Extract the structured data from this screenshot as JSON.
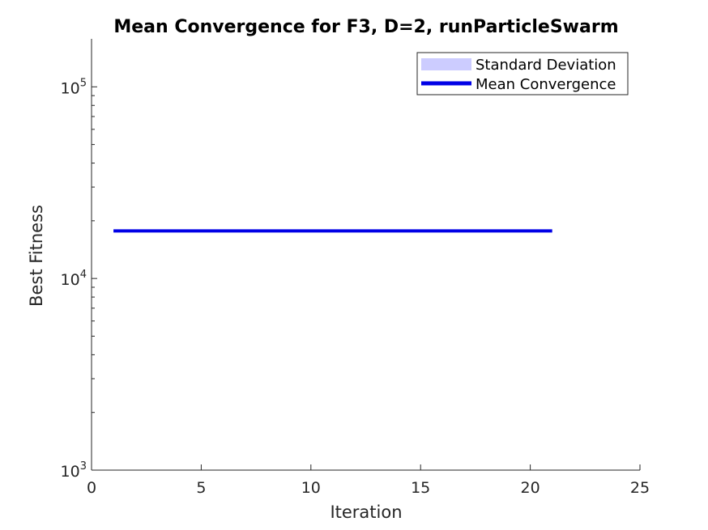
{
  "chart_data": {
    "type": "line",
    "title": "Mean Convergence for F3, D=2, runParticleSwarm",
    "xlabel": "Iteration",
    "ylabel": "Best Fitness",
    "xlim": [
      0,
      25
    ],
    "ylim": [
      1000,
      178000
    ],
    "yscale": "log",
    "grid": false,
    "legend_position": "top-right",
    "x_ticks": [
      "0",
      "5",
      "10",
      "15",
      "20",
      "25"
    ],
    "y_ticks": [
      {
        "base": "10",
        "exp": "3",
        "value": 1000
      },
      {
        "base": "10",
        "exp": "4",
        "value": 10000
      },
      {
        "base": "10",
        "exp": "5",
        "value": 100000
      }
    ],
    "legend": [
      {
        "label": "Standard Deviation",
        "color": "#ccccff",
        "kind": "patch"
      },
      {
        "label": "Mean Convergence",
        "color": "#0000e6",
        "kind": "line"
      }
    ],
    "series": [
      {
        "name": "Mean Convergence",
        "color": "#0000e6",
        "x": [
          1,
          2,
          3,
          4,
          5,
          6,
          7,
          8,
          9,
          10,
          11,
          12,
          13,
          14,
          15,
          16,
          17,
          18,
          19,
          20,
          21
        ],
        "y": [
          17700,
          17700,
          17700,
          17700,
          17700,
          17700,
          17700,
          17700,
          17700,
          17700,
          17700,
          17700,
          17700,
          17700,
          17700,
          17700,
          17700,
          17700,
          17700,
          17700,
          17700
        ],
        "std_lower": [
          17700,
          17700,
          17700,
          17700,
          17700,
          17700,
          17700,
          17700,
          17700,
          17700,
          17700,
          17700,
          17700,
          17700,
          17700,
          17700,
          17700,
          17700,
          17700,
          17700,
          17700
        ],
        "std_upper": [
          17700,
          17700,
          17700,
          17700,
          17700,
          17700,
          17700,
          17700,
          17700,
          17700,
          17700,
          17700,
          17700,
          17700,
          17700,
          17700,
          17700,
          17700,
          17700,
          17700,
          17700
        ]
      }
    ]
  }
}
